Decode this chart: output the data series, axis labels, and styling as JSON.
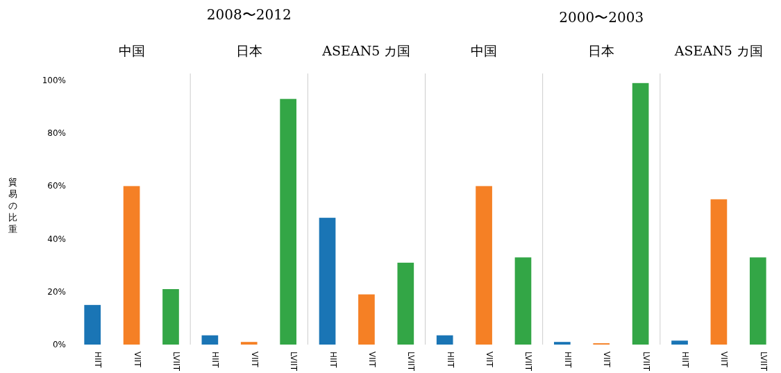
{
  "chart_data": {
    "type": "bar",
    "ylabel": "貿易の比重",
    "categories": [
      "HIIT",
      "VIIT",
      "LVIIT",
      "HIIT",
      "VIIT",
      "LVIIT",
      "HIIT",
      "VIIT",
      "LVIIT",
      "HIIT",
      "VIIT",
      "LVIIT",
      "HIIT",
      "VIIT",
      "LVIIT",
      "HIIT",
      "VIIT",
      "LVIIT"
    ],
    "values": [
      15,
      60,
      21,
      3.5,
      1,
      93,
      48,
      19,
      31,
      3.5,
      60,
      33,
      1,
      0.5,
      99,
      1.5,
      55,
      33
    ],
    "colors": [
      "#1a75b5",
      "#f58025",
      "#33a646",
      "#1a75b5",
      "#f58025",
      "#33a646",
      "#1a75b5",
      "#f58025",
      "#33a646",
      "#1a75b5",
      "#f58025",
      "#33a646",
      "#1a75b5",
      "#f58025",
      "#33a646",
      "#1a75b5",
      "#f58025",
      "#33a646"
    ],
    "ylim": [
      0,
      100
    ],
    "yticks": [
      {
        "value": 0,
        "label": "0%"
      },
      {
        "value": 20,
        "label": "20%"
      },
      {
        "value": 40,
        "label": "40%"
      },
      {
        "value": 60,
        "label": "60%"
      },
      {
        "value": 80,
        "label": "80%"
      },
      {
        "value": 100,
        "label": "100%"
      }
    ],
    "annotations": [
      "2008〜2012",
      "中国",
      "日本",
      "ASEAN5 カ国",
      "2000〜2003",
      "中国",
      "日本",
      "ASEAN5 カ国"
    ]
  }
}
